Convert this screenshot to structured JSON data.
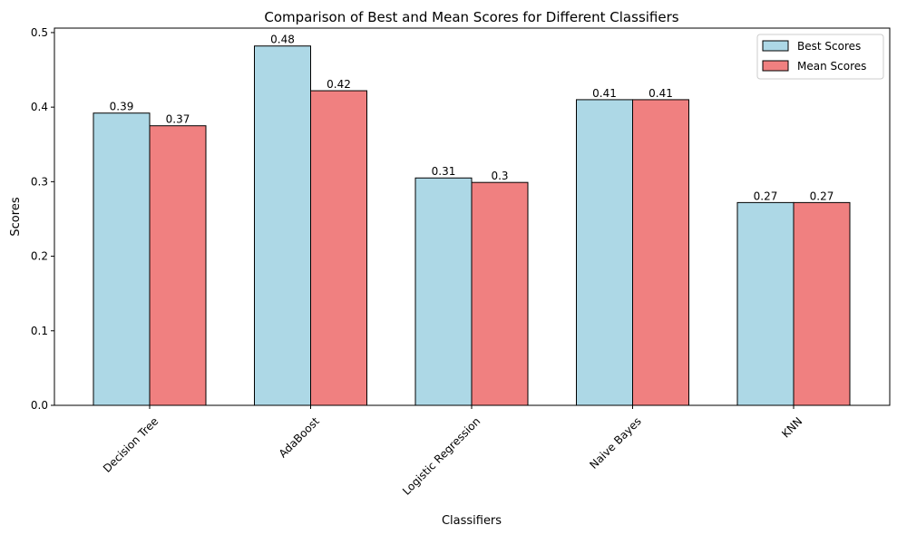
{
  "chart_data": {
    "type": "bar",
    "title": "Comparison of Best and Mean Scores for Different Classifiers",
    "xlabel": "Classifiers",
    "ylabel": "Scores",
    "categories": [
      "Decision Tree",
      "AdaBoost",
      "Logistic Regression",
      "Naive Bayes",
      "KNN"
    ],
    "series": [
      {
        "name": "Best Scores",
        "values": [
          0.392,
          0.482,
          0.305,
          0.41,
          0.272
        ],
        "labels": [
          "0.39",
          "0.48",
          "0.31",
          "0.41",
          "0.27"
        ],
        "color": "#add8e6"
      },
      {
        "name": "Mean Scores",
        "values": [
          0.375,
          0.422,
          0.299,
          0.41,
          0.272
        ],
        "labels": [
          "0.37",
          "0.42",
          "0.3",
          "0.41",
          "0.27"
        ],
        "color": "#f08080"
      }
    ],
    "ylim": [
      0,
      0.506
    ],
    "yticks": [
      "0.0",
      "0.1",
      "0.2",
      "0.3",
      "0.4",
      "0.5"
    ],
    "grid": false,
    "legend": "top-right",
    "xtick_rotation": 45
  }
}
